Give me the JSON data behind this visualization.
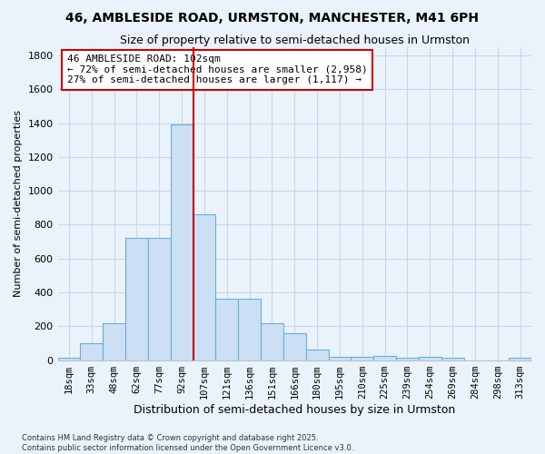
{
  "title1": "46, AMBLESIDE ROAD, URMSTON, MANCHESTER, M41 6PH",
  "title2": "Size of property relative to semi-detached houses in Urmston",
  "xlabel": "Distribution of semi-detached houses by size in Urmston",
  "ylabel": "Number of semi-detached properties",
  "footnote1": "Contains HM Land Registry data © Crown copyright and database right 2025.",
  "footnote2": "Contains public sector information licensed under the Open Government Licence v3.0.",
  "bar_labels": [
    "18sqm",
    "33sqm",
    "48sqm",
    "62sqm",
    "77sqm",
    "92sqm",
    "107sqm",
    "121sqm",
    "136sqm",
    "151sqm",
    "166sqm",
    "180sqm",
    "195sqm",
    "210sqm",
    "225sqm",
    "239sqm",
    "254sqm",
    "269sqm",
    "284sqm",
    "298sqm",
    "313sqm"
  ],
  "bar_heights": [
    15,
    100,
    220,
    720,
    720,
    1390,
    860,
    360,
    360,
    220,
    160,
    60,
    20,
    20,
    25,
    15,
    20,
    15,
    0,
    0,
    15
  ],
  "bar_color": "#cce0f5",
  "bar_edge_color": "#6aaed6",
  "background_color": "#eaf3fb",
  "grid_color": "#c8d8e8",
  "vline_color": "#cc0000",
  "vline_x_index": 6,
  "annotation_title": "46 AMBLESIDE ROAD: 102sqm",
  "annotation_line1": "← 72% of semi-detached houses are smaller (2,958)",
  "annotation_line2": "27% of semi-detached houses are larger (1,117) →",
  "ann_box_color": "#ffffff",
  "ann_box_edge": "#cc0000",
  "ylim": [
    0,
    1850
  ],
  "yticks": [
    0,
    200,
    400,
    600,
    800,
    1000,
    1200,
    1400,
    1600,
    1800
  ]
}
